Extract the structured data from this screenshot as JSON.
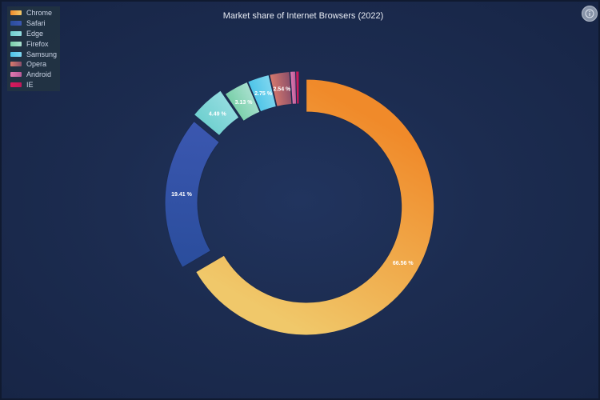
{
  "chart_data": {
    "type": "pie",
    "subtype": "donut",
    "title": "Market share of Internet Browsers (2022)",
    "legend_placement": "top-left",
    "slices": [
      {
        "name": "Chrome",
        "value": 66.56,
        "label": "66.56 %",
        "color_start": "#f08a2a",
        "color_end": "#f0c86a"
      },
      {
        "name": "Safari",
        "value": 19.41,
        "label": "19.41 %",
        "color_start": "#2a4d9c",
        "color_end": "#3b57b0"
      },
      {
        "name": "Edge",
        "value": 4.49,
        "label": "4.49 %",
        "color_start": "#6fd0cf",
        "color_end": "#94dce0"
      },
      {
        "name": "Firefox",
        "value": 3.13,
        "label": "3.13 %",
        "color_start": "#78cfa8",
        "color_end": "#a9e0cf"
      },
      {
        "name": "Samsung",
        "value": 2.75,
        "label": "2.75 %",
        "color_start": "#4cc4e8",
        "color_end": "#7fd6ef"
      },
      {
        "name": "Opera",
        "value": 2.54,
        "label": "2.54 %",
        "color_start": "#d87a6c",
        "color_end": "#8a4e6a"
      },
      {
        "name": "Android",
        "value": 0.7,
        "label": "",
        "color_start": "#e07ab0",
        "color_end": "#b85a98"
      },
      {
        "name": "IE",
        "value": 0.42,
        "label": "",
        "color_start": "#d81b5c",
        "color_end": "#c0185a"
      }
    ]
  }
}
